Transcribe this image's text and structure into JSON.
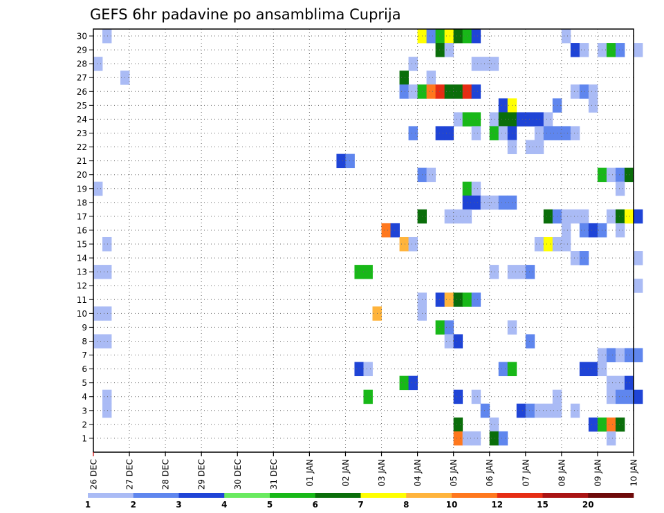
{
  "chart_data": {
    "type": "heatmap",
    "title": "GEFS 6hr padavine po ansamblima Cuprija",
    "xlabel": "",
    "ylabel": "",
    "x_tick_labels": [
      "26 DEC",
      "27 DEC",
      "28 DEC",
      "29 DEC",
      "30 DEC",
      "31 DEC",
      "01 JAN",
      "02 JAN",
      "03 JAN",
      "04 JAN",
      "05 JAN",
      "06 JAN",
      "07 JAN",
      "08 JAN",
      "09 JAN",
      "10 JAN"
    ],
    "y_tick_labels": [
      "1",
      "2",
      "3",
      "4",
      "5",
      "6",
      "7",
      "8",
      "9",
      "10",
      "11",
      "12",
      "13",
      "14",
      "15",
      "16",
      "17",
      "18",
      "19",
      "20",
      "21",
      "22",
      "23",
      "24",
      "25",
      "26",
      "27",
      "28",
      "29",
      "30"
    ],
    "x_range_steps": [
      0,
      60
    ],
    "y_range": [
      0,
      30
    ],
    "grid": true,
    "colorbar": {
      "boundaries": [
        1,
        2,
        3,
        4,
        5,
        6,
        7,
        8,
        10,
        12,
        15,
        20
      ],
      "labels": [
        "1",
        "2",
        "3",
        "4",
        "5",
        "6",
        "7",
        "8",
        "10",
        "12",
        "15",
        "20"
      ],
      "colors": [
        "#aabbf5",
        "#5f86ee",
        "#1f44d6",
        "#69ea5f",
        "#18b818",
        "#0a6e0a",
        "#ffff00",
        "#ffb43c",
        "#ff781e",
        "#e62d14",
        "#aa1414",
        "#6e0a0a"
      ]
    },
    "cells": [
      [
        1,
        30,
        1
      ],
      [
        36,
        30,
        7
      ],
      [
        37,
        30,
        2
      ],
      [
        38,
        30,
        5
      ],
      [
        39,
        30,
        7
      ],
      [
        40,
        30,
        6
      ],
      [
        41,
        30,
        5
      ],
      [
        42,
        30,
        3
      ],
      [
        52,
        30,
        1
      ],
      [
        38,
        29,
        6
      ],
      [
        39,
        29,
        1
      ],
      [
        53,
        29,
        3
      ],
      [
        54,
        29,
        1
      ],
      [
        56,
        29,
        1
      ],
      [
        57,
        29,
        5
      ],
      [
        58,
        29,
        2
      ],
      [
        60,
        29,
        1
      ],
      [
        0,
        28,
        1
      ],
      [
        35,
        28,
        1
      ],
      [
        42,
        28,
        1
      ],
      [
        43,
        28,
        1
      ],
      [
        44,
        28,
        1
      ],
      [
        34,
        27,
        6
      ],
      [
        37,
        27,
        1
      ],
      [
        3,
        27,
        1
      ],
      [
        34,
        26,
        2
      ],
      [
        35,
        26,
        1
      ],
      [
        36,
        26,
        5
      ],
      [
        37,
        26,
        9
      ],
      [
        38,
        26,
        10
      ],
      [
        39,
        26,
        6
      ],
      [
        40,
        26,
        6
      ],
      [
        41,
        26,
        10
      ],
      [
        42,
        26,
        3
      ],
      [
        53,
        26,
        1
      ],
      [
        54,
        26,
        2
      ],
      [
        55,
        26,
        1
      ],
      [
        45,
        25,
        3
      ],
      [
        46,
        25,
        7
      ],
      [
        51,
        25,
        2
      ],
      [
        55,
        25,
        1
      ],
      [
        40,
        24,
        1
      ],
      [
        41,
        24,
        5
      ],
      [
        42,
        24,
        5
      ],
      [
        44,
        24,
        1
      ],
      [
        45,
        24,
        6
      ],
      [
        46,
        24,
        6
      ],
      [
        47,
        24,
        3
      ],
      [
        48,
        24,
        3
      ],
      [
        49,
        24,
        3
      ],
      [
        50,
        24,
        1
      ],
      [
        35,
        23,
        2
      ],
      [
        38,
        23,
        3
      ],
      [
        39,
        23,
        3
      ],
      [
        42,
        23,
        1
      ],
      [
        44,
        23,
        5
      ],
      [
        45,
        23,
        1
      ],
      [
        46,
        23,
        3
      ],
      [
        49,
        23,
        1
      ],
      [
        50,
        23,
        2
      ],
      [
        51,
        23,
        2
      ],
      [
        52,
        23,
        2
      ],
      [
        53,
        23,
        1
      ],
      [
        46,
        22,
        1
      ],
      [
        48,
        22,
        1
      ],
      [
        49,
        22,
        1
      ],
      [
        27,
        21,
        3
      ],
      [
        28,
        21,
        2
      ],
      [
        36,
        20,
        2
      ],
      [
        37,
        20,
        1
      ],
      [
        56,
        20,
        5
      ],
      [
        57,
        20,
        1
      ],
      [
        58,
        20,
        2
      ],
      [
        59,
        20,
        6
      ],
      [
        0,
        19,
        1
      ],
      [
        41,
        19,
        5
      ],
      [
        42,
        19,
        1
      ],
      [
        58,
        19,
        1
      ],
      [
        41,
        18,
        3
      ],
      [
        42,
        18,
        3
      ],
      [
        43,
        18,
        1
      ],
      [
        44,
        18,
        1
      ],
      [
        45,
        18,
        2
      ],
      [
        46,
        18,
        2
      ],
      [
        36,
        17,
        6
      ],
      [
        39,
        17,
        1
      ],
      [
        40,
        17,
        1
      ],
      [
        41,
        17,
        1
      ],
      [
        50,
        17,
        6
      ],
      [
        51,
        17,
        2
      ],
      [
        52,
        17,
        1
      ],
      [
        53,
        17,
        1
      ],
      [
        54,
        17,
        1
      ],
      [
        57,
        17,
        1
      ],
      [
        58,
        17,
        6
      ],
      [
        59,
        17,
        7
      ],
      [
        60,
        17,
        3
      ],
      [
        32,
        16,
        9
      ],
      [
        33,
        16,
        3
      ],
      [
        52,
        16,
        1
      ],
      [
        54,
        16,
        2
      ],
      [
        55,
        16,
        3
      ],
      [
        56,
        16,
        2
      ],
      [
        58,
        16,
        1
      ],
      [
        1,
        15,
        1
      ],
      [
        34,
        15,
        8
      ],
      [
        35,
        15,
        1
      ],
      [
        49,
        15,
        1
      ],
      [
        50,
        15,
        7
      ],
      [
        51,
        15,
        1
      ],
      [
        52,
        15,
        1
      ],
      [
        53,
        14,
        1
      ],
      [
        54,
        14,
        2
      ],
      [
        60,
        14,
        1
      ],
      [
        0,
        13,
        1
      ],
      [
        1,
        13,
        1
      ],
      [
        29,
        13,
        5
      ],
      [
        30,
        13,
        5
      ],
      [
        44,
        13,
        1
      ],
      [
        46,
        13,
        1
      ],
      [
        47,
        13,
        1
      ],
      [
        48,
        13,
        2
      ],
      [
        60,
        12,
        1
      ],
      [
        36,
        11,
        1
      ],
      [
        38,
        11,
        3
      ],
      [
        39,
        11,
        8
      ],
      [
        40,
        11,
        6
      ],
      [
        41,
        11,
        5
      ],
      [
        42,
        11,
        2
      ],
      [
        0,
        10,
        1
      ],
      [
        1,
        10,
        1
      ],
      [
        31,
        10,
        8
      ],
      [
        36,
        10,
        1
      ],
      [
        38,
        9,
        5
      ],
      [
        39,
        9,
        2
      ],
      [
        46,
        9,
        1
      ],
      [
        0,
        8,
        1
      ],
      [
        1,
        8,
        1
      ],
      [
        39,
        8,
        1
      ],
      [
        40,
        8,
        3
      ],
      [
        48,
        8,
        2
      ],
      [
        56,
        7,
        1
      ],
      [
        57,
        7,
        2
      ],
      [
        58,
        7,
        1
      ],
      [
        59,
        7,
        2
      ],
      [
        60,
        7,
        2
      ],
      [
        29,
        6,
        3
      ],
      [
        30,
        6,
        1
      ],
      [
        45,
        6,
        2
      ],
      [
        46,
        6,
        5
      ],
      [
        54,
        6,
        3
      ],
      [
        55,
        6,
        3
      ],
      [
        56,
        6,
        1
      ],
      [
        34,
        5,
        5
      ],
      [
        35,
        5,
        3
      ],
      [
        57,
        5,
        1
      ],
      [
        58,
        5,
        1
      ],
      [
        59,
        5,
        3
      ],
      [
        1,
        4,
        1
      ],
      [
        30,
        4,
        5
      ],
      [
        40,
        4,
        3
      ],
      [
        42,
        4,
        1
      ],
      [
        51,
        4,
        1
      ],
      [
        57,
        4,
        1
      ],
      [
        58,
        4,
        2
      ],
      [
        59,
        4,
        2
      ],
      [
        60,
        4,
        3
      ],
      [
        1,
        3,
        1
      ],
      [
        43,
        3,
        2
      ],
      [
        47,
        3,
        3
      ],
      [
        48,
        3,
        2
      ],
      [
        49,
        3,
        1
      ],
      [
        50,
        3,
        1
      ],
      [
        51,
        3,
        1
      ],
      [
        53,
        3,
        1
      ],
      [
        40,
        2,
        6
      ],
      [
        44,
        2,
        1
      ],
      [
        55,
        2,
        3
      ],
      [
        56,
        2,
        5
      ],
      [
        57,
        2,
        9
      ],
      [
        58,
        2,
        6
      ],
      [
        40,
        1,
        9
      ],
      [
        41,
        1,
        1
      ],
      [
        42,
        1,
        1
      ],
      [
        44,
        1,
        6
      ],
      [
        45,
        1,
        2
      ],
      [
        57,
        1,
        1
      ]
    ]
  }
}
